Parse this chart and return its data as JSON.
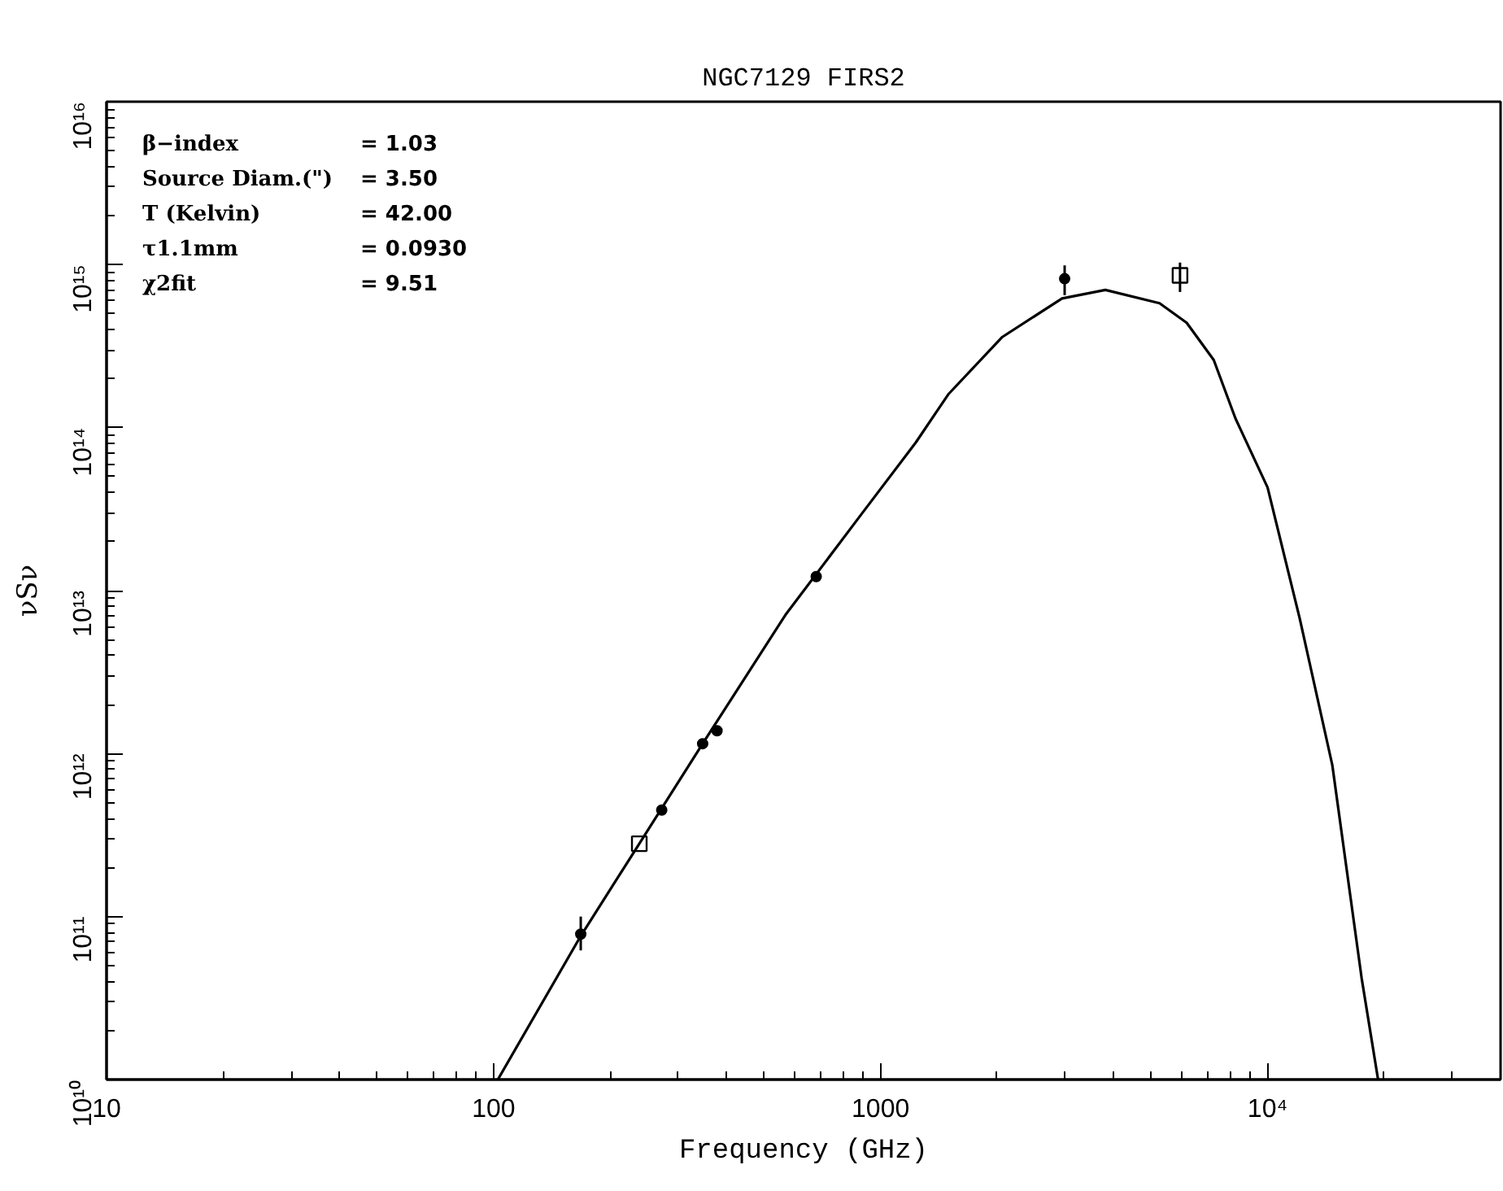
{
  "chart_data": {
    "type": "scatter",
    "title": "NGC7129 FIRS2",
    "xlabel": "Frequency (GHz)",
    "ylabel": "νSν",
    "log": "xy",
    "grid": false,
    "marker": "circle",
    "xlim": [
      10,
      40000
    ],
    "ylim": [
      10000000000.0,
      1e+16
    ],
    "xticks": [
      10,
      100,
      1000,
      {
        "value": 10000,
        "label": "10⁴"
      }
    ],
    "yticks": [
      {
        "value": 10000000000.0,
        "label": "10¹⁰"
      },
      {
        "value": 100000000000.0,
        "label": "10¹¹"
      },
      {
        "value": 1000000000000.0,
        "label": "10¹²"
      },
      {
        "value": 10000000000000.0,
        "label": "10¹³"
      },
      {
        "value": 100000000000000.0,
        "label": "10¹⁴"
      },
      {
        "value": 1000000000000000.0,
        "label": "10¹⁵"
      },
      {
        "value": 1e+16,
        "label": "10¹⁶"
      }
    ],
    "annotations": [
      "β−index = 1.03",
      "Source Diam.(\") = 3.50",
      "T (Kelvin) = 42.00",
      "τ1.1mm = 0.0930",
      "χ2fit = 9.51"
    ],
    "series": [
      {
        "color": "#000000",
        "x": [
          168,
          272,
          347,
          378,
          682,
          2990
        ],
        "values": [
          78000000000.0,
          450000000000.0,
          1150000000000.0,
          1380000000000.0,
          12200000000000.0,
          820000000000000.0
        ],
        "errors": [
          [
            62000000000.0,
            100000000000.0
          ],
          null,
          null,
          null,
          null,
          [
            650000000000000.0,
            990000000000000.0
          ]
        ]
      },
      {
        "marker": "square",
        "color": "#000000",
        "x": [
          238,
          5940
        ],
        "values": [
          280000000000.0,
          860000000000000.0
        ],
        "errors": [
          null,
          [
            680000000000000.0,
            1030000000000000.0
          ]
        ]
      },
      {
        "type": "line",
        "marker": "none",
        "line_style": "solid",
        "color": "#000000",
        "x": [
          102.6,
          168,
          238,
          347,
          568,
          893,
          1233,
          1496,
          2064,
          2944,
          3810,
          5260,
          6180,
          7260,
          8260,
          10000,
          12100,
          14700,
          17500,
          19300
        ],
        "values": [
          10000000000.0,
          76000000000.0,
          280000000000.0,
          1150000000000.0,
          7100000000000.0,
          29500000000000.0,
          81000000000000.0,
          160000000000000.0,
          360000000000000.0,
          620000000000000.0,
          700000000000000.0,
          580000000000000.0,
          440000000000000.0,
          260000000000000.0,
          114000000000000.0,
          43000000000000.0,
          6800000000000.0,
          850000000000.0,
          42000000000.0,
          10000000000.0
        ]
      }
    ]
  }
}
